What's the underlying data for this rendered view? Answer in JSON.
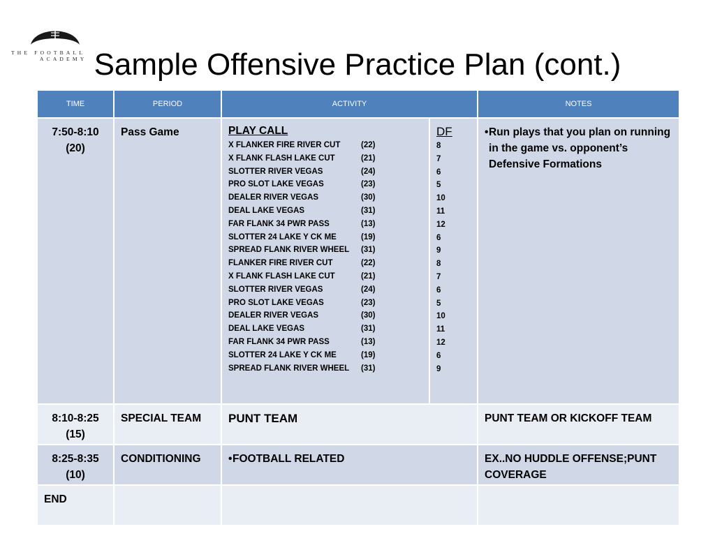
{
  "logo": {
    "line1": "THE FOOTBALL",
    "line2": "ACADEMY"
  },
  "title": "Sample Offensive Practice Plan (cont.)",
  "headers": {
    "time": "TIME",
    "period": "PERIOD",
    "activity": "ACTIVITY",
    "notes": "NOTES"
  },
  "rows": [
    {
      "time_range": "7:50-8:10",
      "time_duration": "(20)",
      "period": "Pass Game",
      "play_call_header": "PLAY CALL",
      "plays": [
        {
          "name": "X FLANKER FIRE RIVER  CUT",
          "num": "(22)"
        },
        {
          "name": "X FLANK FLASH LAKE CUT",
          "num": "(21)"
        },
        {
          "name": "SLOTTER RIVER VEGAS",
          "num": "(24)"
        },
        {
          "name": "PRO SLOT LAKE VEGAS",
          "num": "(23)"
        },
        {
          "name": "DEALER RIVER VEGAS",
          "num": "(30)"
        },
        {
          "name": "DEAL LAKE VEGAS",
          "num": "(31)"
        },
        {
          "name": "FAR FLANK  34 PWR PASS",
          "num": "(13)"
        },
        {
          "name": "SLOTTER  24 LAKE Y CK ME",
          "num": "(19)"
        },
        {
          "name": "SPREAD FLANK RIVER WHEEL",
          "num": "(31)"
        },
        {
          "name": "FLANKER FIRE RIVER  CUT",
          "num": "(22)"
        },
        {
          "name": "X FLANK FLASH LAKE CUT",
          "num": "(21)"
        },
        {
          "name": "SLOTTER RIVER VEGAS",
          "num": "(24)"
        },
        {
          "name": "PRO SLOT LAKE VEGAS",
          "num": "(23)"
        },
        {
          "name": "DEALER RIVER VEGAS",
          "num": "(30)"
        },
        {
          "name": "DEAL LAKE VEGAS",
          "num": "(31)"
        },
        {
          "name": "FAR FLANK  34 PWR PASS",
          "num": "(13)"
        },
        {
          "name": "SLOTTER  24 LAKE Y CK ME",
          "num": "(19)"
        },
        {
          "name": "SPREAD FLANK RIVER WHEEL",
          "num": "(31)"
        }
      ],
      "df_header": "DF",
      "df_values": [
        "8",
        "7",
        "6",
        "5",
        "10",
        "11",
        "12",
        "6",
        "9",
        "8",
        "7",
        "6",
        "5",
        "10",
        "11",
        "12",
        "6",
        "9"
      ],
      "notes": "Run plays that you plan on running in the game vs. opponent’s Defensive Formations"
    },
    {
      "time_range": "8:10-8:25",
      "time_duration": "(15)",
      "period": "SPECIAL TEAM",
      "activity": "PUNT  TEAM",
      "notes": "PUNT TEAM OR KICKOFF TEAM"
    },
    {
      "time_range": "8:25-8:35",
      "time_duration": "(10)",
      "period": "CONDITIONING",
      "activity": "FOOTBALL RELATED",
      "notes": "EX..NO HUDDLE OFFENSE;PUNT COVERAGE"
    },
    {
      "time_range": "END",
      "period": "",
      "activity": "",
      "notes": ""
    }
  ],
  "colors": {
    "header_bg": "#4f81bd",
    "row_dark": "#d0d8e8",
    "row_light": "#e9edf4"
  }
}
